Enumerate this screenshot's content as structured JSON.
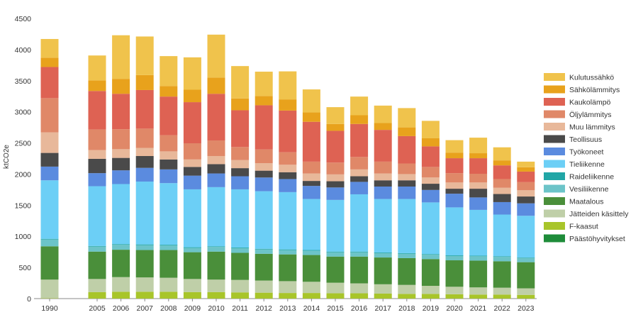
{
  "chart_data": {
    "type": "bar",
    "stacked": true,
    "ylabel": "ktCO2e",
    "xlabel": "",
    "ylim": [
      0,
      4500
    ],
    "yticks": [
      0,
      500,
      1000,
      1500,
      2000,
      2500,
      3000,
      3500,
      4000,
      4500
    ],
    "legend_position": "right",
    "categories": [
      "1990",
      "2005",
      "2006",
      "2007",
      "2008",
      "2009",
      "2010",
      "2011",
      "2012",
      "2013",
      "2014",
      "2015",
      "2016",
      "2017",
      "2018",
      "2019",
      "2020",
      "2021",
      "2022",
      "2023"
    ],
    "series": [
      {
        "name": "Päästöhyvitykset",
        "color": "#1e8c3a",
        "values": [
          0,
          0,
          0,
          0,
          0,
          0,
          0,
          0,
          0,
          0,
          0,
          0,
          0,
          0,
          0,
          0,
          0,
          0,
          0,
          0
        ]
      },
      {
        "name": "F-kaasut",
        "color": "#a8c52a",
        "values": [
          5,
          105,
          110,
          110,
          110,
          105,
          105,
          100,
          95,
          90,
          90,
          85,
          85,
          80,
          75,
          75,
          70,
          65,
          65,
          60
        ]
      },
      {
        "name": "Jätteiden käsittely",
        "color": "#bfcfa8",
        "values": [
          300,
          210,
          235,
          230,
          225,
          210,
          200,
          200,
          195,
          190,
          180,
          170,
          160,
          150,
          145,
          130,
          120,
          115,
          110,
          105
        ]
      },
      {
        "name": "Maatalous",
        "color": "#4a8f3a",
        "values": [
          535,
          440,
          440,
          440,
          445,
          430,
          450,
          435,
          430,
          430,
          430,
          420,
          430,
          430,
          430,
          430,
          425,
          430,
          425,
          420
        ]
      },
      {
        "name": "Vesiliikenne",
        "color": "#6cc4c8",
        "values": [
          110,
          80,
          80,
          80,
          75,
          70,
          75,
          75,
          70,
          70,
          70,
          70,
          70,
          70,
          70,
          70,
          70,
          70,
          70,
          70
        ]
      },
      {
        "name": "Raideliikenne",
        "color": "#21a6a6",
        "values": [
          10,
          10,
          10,
          10,
          10,
          10,
          10,
          10,
          10,
          10,
          10,
          10,
          10,
          10,
          10,
          10,
          10,
          10,
          10,
          5
        ]
      },
      {
        "name": "Tieliikenne",
        "color": "#6ccff6",
        "values": [
          940,
          960,
          965,
          1010,
          990,
          930,
          950,
          935,
          925,
          920,
          820,
          830,
          920,
          860,
          870,
          830,
          770,
          735,
          670,
          670
        ]
      },
      {
        "name": "Työkoneet",
        "color": "#5b8bdf",
        "values": [
          220,
          210,
          220,
          220,
          220,
          220,
          220,
          210,
          220,
          210,
          210,
          200,
          200,
          200,
          200,
          200,
          220,
          200,
          200,
          200
        ]
      },
      {
        "name": "Teollisuus",
        "color": "#4a4a4a",
        "values": [
          220,
          230,
          200,
          190,
          160,
          140,
          150,
          130,
          110,
          110,
          80,
          100,
          90,
          100,
          100,
          100,
          80,
          140,
          130,
          110
        ]
      },
      {
        "name": "Muu lämmitys",
        "color": "#e8b89a",
        "values": [
          330,
          140,
          140,
          130,
          130,
          120,
          130,
          130,
          120,
          120,
          120,
          110,
          110,
          110,
          100,
          100,
          100,
          100,
          100,
          100
        ]
      },
      {
        "name": "Öljylämmitys",
        "color": "#e08868",
        "values": [
          550,
          330,
          320,
          310,
          260,
          260,
          250,
          210,
          220,
          200,
          190,
          190,
          200,
          190,
          170,
          170,
          150,
          140,
          140,
          130
        ]
      },
      {
        "name": "Kaukolämpö",
        "color": "#de6253",
        "values": [
          500,
          620,
          570,
          620,
          620,
          660,
          750,
          590,
          710,
          670,
          640,
          510,
          530,
          510,
          440,
          330,
          240,
          250,
          220,
          170
        ]
      },
      {
        "name": "Sähkölämmitys",
        "color": "#e8a21c",
        "values": [
          150,
          170,
          240,
          240,
          170,
          200,
          260,
          190,
          150,
          180,
          150,
          110,
          140,
          110,
          140,
          130,
          90,
          80,
          80,
          70
        ]
      },
      {
        "name": "Kulutussähkö",
        "color": "#f0c34c",
        "values": [
          300,
          400,
          700,
          620,
          480,
          520,
          690,
          520,
          390,
          450,
          370,
          270,
          300,
          280,
          310,
          280,
          200,
          250,
          210,
          90
        ]
      }
    ]
  }
}
